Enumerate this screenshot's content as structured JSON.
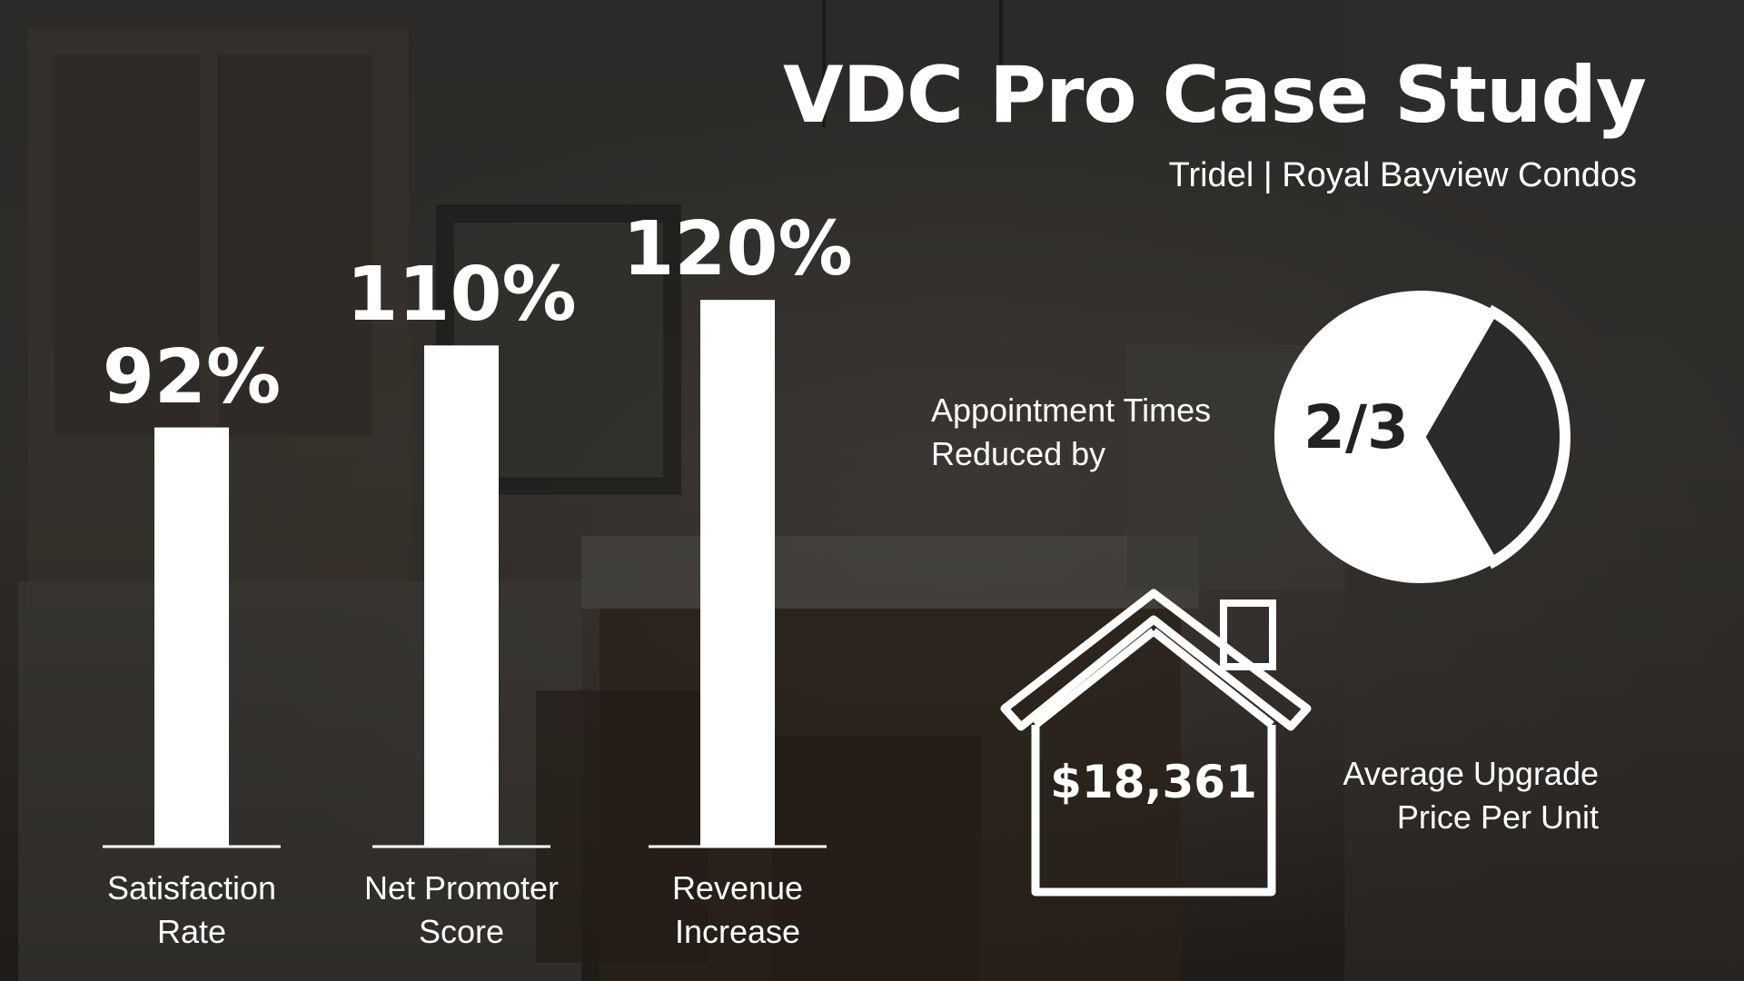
{
  "title": "VDC Pro Case Study",
  "subtitle": "Tridel | Royal Bayview Condos",
  "colors": {
    "text": "#ffffff",
    "bars": "#ffffff",
    "overlay": "#2b2a28",
    "pie_label": "#222222"
  },
  "chart_data": [
    {
      "type": "bar",
      "categories": [
        "Satisfaction Rate",
        "Net Promoter Score",
        "Revenue Increase"
      ],
      "category_lines": [
        [
          "Satisfaction",
          "Rate"
        ],
        [
          "Net Promoter",
          "Score"
        ],
        [
          "Revenue",
          "Increase"
        ]
      ],
      "values": [
        92,
        110,
        120
      ],
      "value_labels": [
        "92%",
        "110%",
        "120%"
      ],
      "title": "",
      "xlabel": "",
      "ylabel": "",
      "ylim": [
        0,
        130
      ],
      "grid": false
    },
    {
      "type": "pie",
      "label": "2/3",
      "values": [
        0.667,
        0.333
      ],
      "caption_lines": [
        "Appointment Times",
        "Reduced by"
      ]
    }
  ],
  "upgrade": {
    "value": "$18,361",
    "caption_lines": [
      "Average Upgrade",
      "Price Per Unit"
    ],
    "icon": "house-icon"
  }
}
